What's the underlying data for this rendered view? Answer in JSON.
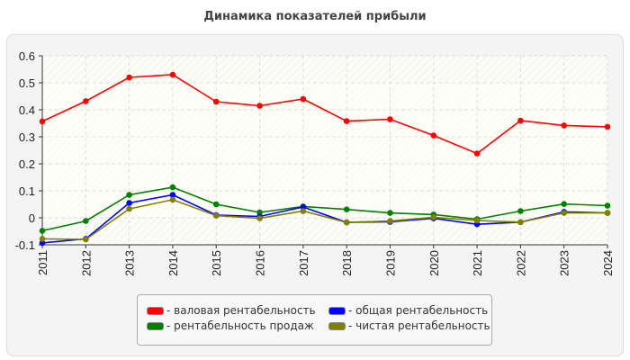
{
  "chart_data": {
    "type": "line",
    "title": "Динамика показателей прибыли",
    "categories": [
      "2011",
      "2012",
      "2013",
      "2014",
      "2015",
      "2016",
      "2017",
      "2018",
      "2019",
      "2020",
      "2021",
      "2022",
      "2023",
      "2024"
    ],
    "ylim": [
      -0.1,
      0.6
    ],
    "yticks": [
      "0.6",
      "0.5",
      "0.4",
      "0.3",
      "0.2",
      "0.1",
      "0",
      "-0.1"
    ],
    "grid": true,
    "legend_position": "bottom",
    "series": [
      {
        "name": "- валовая рентабельность",
        "color": "#ff0000",
        "values": [
          0.357,
          0.432,
          0.52,
          0.53,
          0.43,
          0.415,
          0.44,
          0.358,
          0.365,
          0.305,
          0.238,
          0.36,
          0.342,
          0.337
        ]
      },
      {
        "name": "- рентабельность продаж",
        "color": "#008000",
        "values": [
          -0.048,
          -0.012,
          0.085,
          0.113,
          0.05,
          0.02,
          0.042,
          0.031,
          0.018,
          0.012,
          -0.005,
          0.025,
          0.051,
          0.045
        ]
      },
      {
        "name": "- общая рентабельность",
        "color": "#0000ff",
        "values": [
          -0.093,
          -0.078,
          0.055,
          0.085,
          0.01,
          0.005,
          0.04,
          -0.017,
          -0.015,
          -0.002,
          -0.024,
          -0.016,
          0.022,
          0.018
        ]
      },
      {
        "name": "- чистая рентабельность",
        "color": "#808000",
        "values": [
          -0.078,
          -0.08,
          0.033,
          0.067,
          0.008,
          -0.002,
          0.025,
          -0.017,
          -0.012,
          0.002,
          -0.01,
          -0.016,
          0.018,
          0.018
        ]
      }
    ]
  }
}
